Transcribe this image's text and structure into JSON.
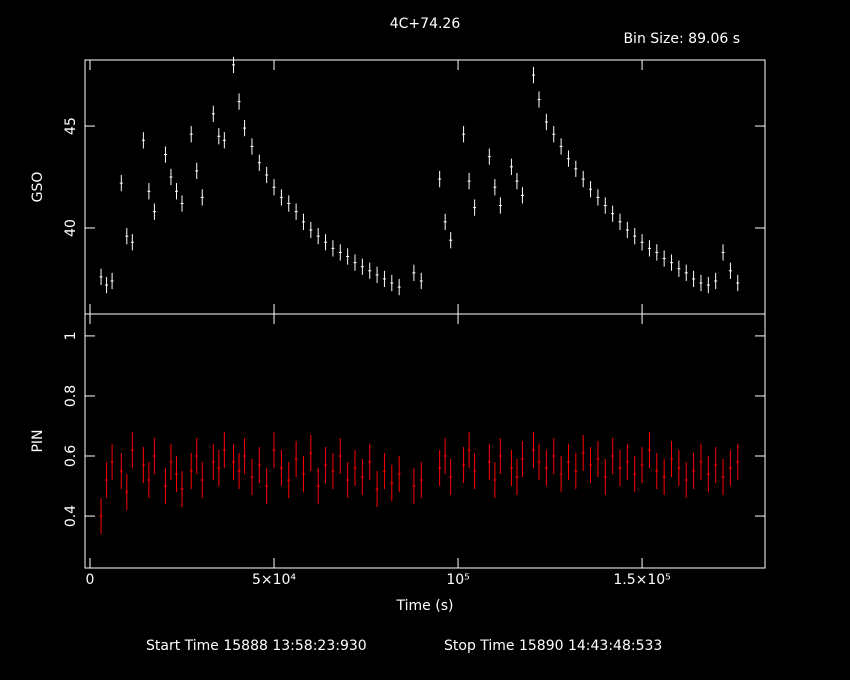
{
  "title": "4C+74.26",
  "bin_size": "Bin Size: 89.06 s",
  "start_time": "Start Time 15888 13:58:23:930",
  "stop_time": "Stop Time 15890 14:43:48:533",
  "chart_data": [
    {
      "type": "errorbar",
      "y_label": "GSO",
      "color": "#ffffff",
      "xlim": [
        -1360,
        183400
      ],
      "ylim": [
        35.78,
        48.24
      ],
      "xticks": [
        0,
        50000,
        100000,
        150000
      ],
      "yticks": [
        40,
        45
      ],
      "x": [
        3000,
        4500,
        6000,
        8500,
        10000,
        11500,
        14500,
        16000,
        17500,
        20500,
        22000,
        23500,
        25000,
        27500,
        29000,
        30500,
        33500,
        35000,
        36500,
        39000,
        40500,
        42000,
        44000,
        46000,
        48000,
        50000,
        52000,
        54000,
        56000,
        58000,
        60000,
        62000,
        64000,
        66000,
        68000,
        70000,
        72000,
        74000,
        76000,
        78000,
        80000,
        82000,
        84000,
        88000,
        90000,
        95000,
        96500,
        98000,
        101500,
        103000,
        104500,
        108500,
        110000,
        111500,
        114500,
        116000,
        117500,
        120500,
        122000,
        124000,
        126000,
        128000,
        130000,
        132000,
        134000,
        136000,
        138000,
        140000,
        142000,
        144000,
        146000,
        148000,
        150000,
        152000,
        154000,
        156000,
        158000,
        160000,
        162000,
        164000,
        166000,
        168000,
        170000,
        172000,
        174000,
        176000
      ],
      "values": [
        37.6,
        37.2,
        37.4,
        42.2,
        39.6,
        39.3,
        44.3,
        41.8,
        40.8,
        43.6,
        42.5,
        41.8,
        41.2,
        44.6,
        42.8,
        41.5,
        45.6,
        44.5,
        44.3,
        48.0,
        46.2,
        44.9,
        44.0,
        43.2,
        42.6,
        42.0,
        41.5,
        41.2,
        40.8,
        40.3,
        39.9,
        39.6,
        39.3,
        39.0,
        38.8,
        38.6,
        38.3,
        38.1,
        37.9,
        37.7,
        37.5,
        37.3,
        37.1,
        37.8,
        37.4,
        42.4,
        40.3,
        39.4,
        44.6,
        42.3,
        41.0,
        43.5,
        42.0,
        41.1,
        43.0,
        42.3,
        41.6,
        47.5,
        46.3,
        45.2,
        44.6,
        44.0,
        43.4,
        42.9,
        42.4,
        41.9,
        41.5,
        41.1,
        40.7,
        40.3,
        39.9,
        39.6,
        39.3,
        39.0,
        38.8,
        38.5,
        38.3,
        38.0,
        37.8,
        37.5,
        37.3,
        37.2,
        37.4,
        38.8,
        37.9,
        37.3
      ],
      "error": 0.4
    },
    {
      "type": "errorbar",
      "y_label": "PIN",
      "x_label": "Time (s)",
      "color": "#ff0000",
      "xlim": [
        -1360,
        183400
      ],
      "ylim": [
        0.227,
        1.073
      ],
      "xticks": [
        0,
        {
          "value": 50000,
          "label": "5×10⁴"
        },
        {
          "value": 100000,
          "label": "10⁵"
        },
        {
          "value": 150000,
          "label": "1.5×10⁵"
        }
      ],
      "yticks": [
        0.4,
        0.6,
        0.8,
        1
      ],
      "x": [
        3000,
        4500,
        6000,
        8500,
        10000,
        11500,
        14500,
        16000,
        17500,
        20500,
        22000,
        23500,
        25000,
        27500,
        29000,
        30500,
        33500,
        35000,
        36500,
        39000,
        40500,
        42000,
        44000,
        46000,
        48000,
        50000,
        52000,
        54000,
        56000,
        58000,
        60000,
        62000,
        64000,
        66000,
        68000,
        70000,
        72000,
        74000,
        76000,
        78000,
        80000,
        82000,
        84000,
        88000,
        90000,
        95000,
        96500,
        98000,
        101500,
        103000,
        104500,
        108500,
        110000,
        111500,
        114500,
        116000,
        117500,
        120500,
        122000,
        124000,
        126000,
        128000,
        130000,
        132000,
        134000,
        136000,
        138000,
        140000,
        142000,
        144000,
        146000,
        148000,
        150000,
        152000,
        154000,
        156000,
        158000,
        160000,
        162000,
        164000,
        166000,
        168000,
        170000,
        172000,
        174000,
        176000
      ],
      "values": [
        0.4,
        0.52,
        0.58,
        0.55,
        0.48,
        0.62,
        0.57,
        0.52,
        0.6,
        0.5,
        0.58,
        0.54,
        0.49,
        0.55,
        0.6,
        0.52,
        0.58,
        0.56,
        0.62,
        0.58,
        0.55,
        0.6,
        0.53,
        0.57,
        0.5,
        0.62,
        0.56,
        0.52,
        0.59,
        0.54,
        0.61,
        0.5,
        0.57,
        0.55,
        0.6,
        0.52,
        0.56,
        0.53,
        0.58,
        0.49,
        0.55,
        0.51,
        0.54,
        0.5,
        0.52,
        0.56,
        0.6,
        0.53,
        0.57,
        0.62,
        0.55,
        0.58,
        0.52,
        0.6,
        0.56,
        0.53,
        0.59,
        0.62,
        0.58,
        0.56,
        0.6,
        0.54,
        0.58,
        0.55,
        0.61,
        0.57,
        0.59,
        0.53,
        0.6,
        0.56,
        0.58,
        0.54,
        0.57,
        0.62,
        0.55,
        0.53,
        0.59,
        0.56,
        0.52,
        0.55,
        0.58,
        0.54,
        0.57,
        0.53,
        0.56,
        0.58
      ],
      "error": 0.06
    }
  ]
}
